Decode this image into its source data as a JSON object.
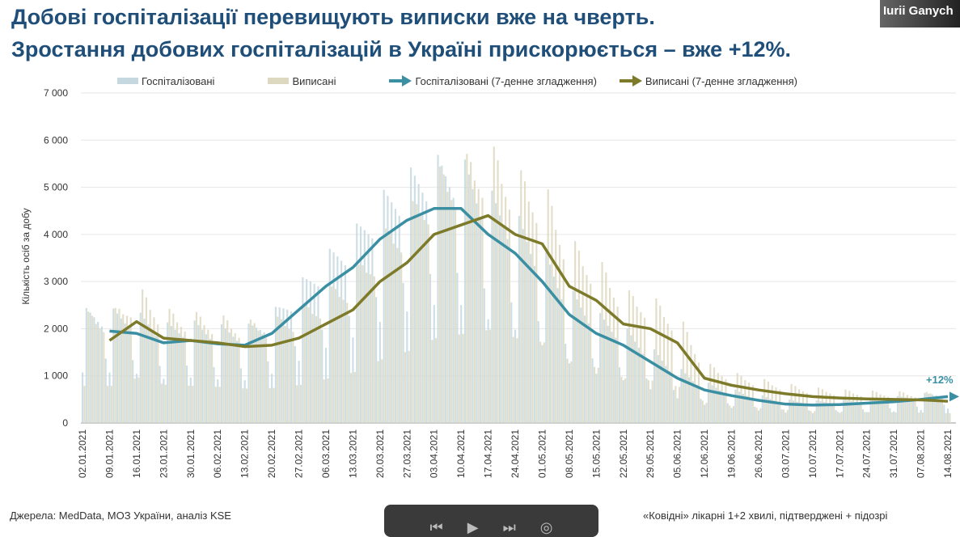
{
  "title_line1": "Добові госпіталізації перевищують виписки вже на чверть.",
  "title_line2": "Зростання добових госпіталізацій в Україні прискорюється – вже +12%.",
  "participant_name": "Iurii Ganych",
  "footer_source": "Джерела: MedData, МОЗ України, аналіз KSE",
  "footer_note": "«Ковідні» лікарні 1+2 хвилі, підтверджені + підозрі",
  "zoom_controls": [
    "⏮",
    "▶",
    "⏭",
    "◎"
  ],
  "colors": {
    "title": "#1f4e79",
    "hosp_bar": "#c5d8e0",
    "disc_bar": "#ddd8c0",
    "hosp_line": "#3a8fa3",
    "disc_line": "#7d7a2a"
  },
  "chart_data": {
    "type": "bar+line",
    "ylabel": "Кількість осіб за добу",
    "ylim": [
      0,
      7000
    ],
    "yticks": [
      0,
      1000,
      2000,
      3000,
      4000,
      5000,
      6000,
      7000
    ],
    "ytick_labels": [
      "0",
      "1 000",
      "2 000",
      "3 000",
      "4 000",
      "5 000",
      "6 000",
      "7 000"
    ],
    "legend": [
      "Госпіталізовані",
      "Виписані",
      "Госпіталізовані (7-денне згладження)",
      "Виписані (7-денне згладження)"
    ],
    "annotation": "+12%",
    "x": [
      "02.01.2021",
      "09.01.2021",
      "16.01.2021",
      "23.01.2021",
      "30.01.2021",
      "06.02.2021",
      "13.02.2021",
      "20.02.2021",
      "27.02.2021",
      "06.03.2021",
      "13.03.2021",
      "20.03.2021",
      "27.03.2021",
      "03.04.2021",
      "10.04.2021",
      "17.04.2021",
      "24.04.2021",
      "01.05.2021",
      "08.05.2021",
      "15.05.2021",
      "22.05.2021",
      "29.05.2021",
      "05.06.2021",
      "12.06.2021",
      "19.06.2021",
      "26.06.2021",
      "03.07.2021",
      "10.07.2021",
      "17.07.2021",
      "24.07.2021",
      "31.07.2021",
      "07.08.2021",
      "14.08.2021"
    ],
    "series": [
      {
        "name": "Госпіталізовані (7-денне згладження)",
        "values": [
          null,
          1950,
          1900,
          1700,
          1750,
          1680,
          1650,
          1900,
          2400,
          2900,
          3300,
          3900,
          4300,
          4550,
          4550,
          4000,
          3600,
          3000,
          2300,
          1900,
          1650,
          1300,
          950,
          700,
          580,
          480,
          400,
          380,
          390,
          420,
          450,
          500,
          560
        ]
      },
      {
        "name": "Виписані (7-денне згладження)",
        "values": [
          null,
          1750,
          2150,
          1800,
          1750,
          1700,
          1620,
          1650,
          1800,
          2100,
          2400,
          3000,
          3400,
          4000,
          4200,
          4400,
          4000,
          3800,
          2900,
          2600,
          2100,
          2000,
          1700,
          950,
          800,
          700,
          620,
          560,
          530,
          510,
          500,
          490,
          460
        ]
      }
    ],
    "daily_weekday_factors": {
      "hosp": [
        0.55,
        1.25,
        1.2,
        1.15,
        1.1,
        1.05,
        0.7
      ],
      "disc": [
        0.45,
        1.35,
        1.3,
        1.2,
        1.15,
        1.1,
        0.45
      ]
    }
  }
}
